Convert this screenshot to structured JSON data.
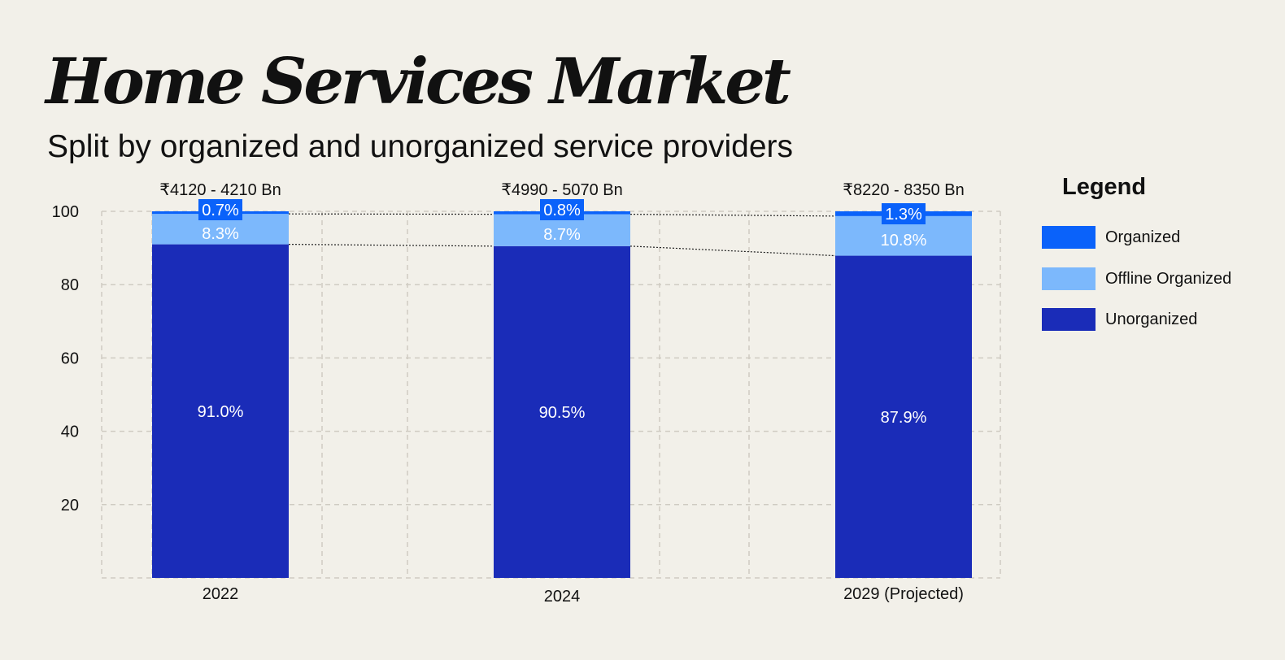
{
  "title": "Home Services Market",
  "subtitle": "Split by organized and unorganized service providers",
  "legend": {
    "title": "Legend",
    "items": [
      {
        "label": "Organized",
        "color": "#0a62fa"
      },
      {
        "label": "Offline Organized",
        "color": "#7cb8fc"
      },
      {
        "label": "Unorganized",
        "color": "#1a2cb8"
      }
    ]
  },
  "chart_data": {
    "type": "bar",
    "stacked": true,
    "categories": [
      "2022",
      "2024",
      "2029 (Projected)"
    ],
    "totals": [
      "₹4120 - 4210 Bn",
      "₹4990 - 5070 Bn",
      "₹8220 - 8350 Bn"
    ],
    "series": [
      {
        "name": "Unorganized",
        "values": [
          91.0,
          90.5,
          87.9
        ],
        "labels": [
          "91.0%",
          "90.5%",
          "87.9%"
        ],
        "color": "#1a2cb8"
      },
      {
        "name": "Offline Organized",
        "values": [
          8.3,
          8.7,
          10.8
        ],
        "labels": [
          "8.3%",
          "8.7%",
          "10.8%"
        ],
        "color": "#7cb8fc"
      },
      {
        "name": "Organized",
        "values": [
          0.7,
          0.8,
          1.3
        ],
        "labels": [
          "0.7%",
          "0.8%",
          "1.3%"
        ],
        "color": "#0a62fa"
      }
    ],
    "ylim": [
      0,
      100
    ],
    "yticks": [
      "20",
      "40",
      "60",
      "80",
      "100"
    ],
    "grid": true,
    "legend_position": "right"
  }
}
